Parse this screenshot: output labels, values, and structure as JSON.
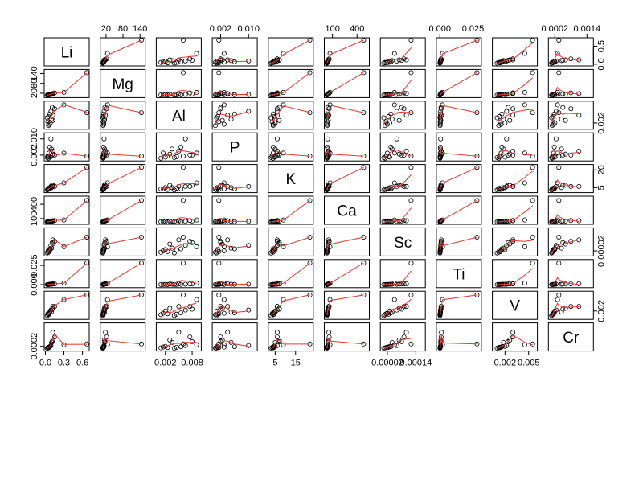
{
  "chart_data": {
    "type": "scatter-matrix",
    "variables": [
      {
        "name": "Li",
        "min": 0.02,
        "max": 0.67,
        "ticks": [
          {
            "v": 0.0,
            "label": "0.0"
          },
          {
            "v": 0.3,
            "label": "0.3"
          },
          {
            "v": 0.6,
            "label": "0.6"
          }
        ],
        "side_ticks": [
          {
            "v": 0.0,
            "label": "0.0"
          },
          {
            "v": 0.5,
            "label": "0.5"
          }
        ]
      },
      {
        "name": "Mg",
        "min": 8,
        "max": 150,
        "ticks": [
          {
            "v": 20,
            "label": "20"
          },
          {
            "v": 80,
            "label": "80"
          },
          {
            "v": 140,
            "label": "140"
          }
        ]
      },
      {
        "name": "Al",
        "min": 0.0005,
        "max": 0.0095,
        "ticks": [
          {
            "v": 0.002,
            "label": "0.002"
          },
          {
            "v": 0.008,
            "label": "0.008"
          }
        ],
        "side_ticks": [
          {
            "v": 0.002,
            "label": "0.002"
          }
        ]
      },
      {
        "name": "P",
        "min": 0.0003,
        "max": 0.0118,
        "ticks": [
          {
            "v": 0.002,
            "label": "0.002"
          },
          {
            "v": 0.01,
            "label": "0.010"
          }
        ]
      },
      {
        "name": "K",
        "min": 2.8,
        "max": 22.5,
        "ticks": [
          {
            "v": 5,
            "label": "5"
          },
          {
            "v": 15,
            "label": "15"
          }
        ],
        "side_ticks": [
          {
            "v": 5,
            "label": "5"
          },
          {
            "v": 20,
            "label": "20"
          }
        ]
      },
      {
        "name": "Ca",
        "min": 30,
        "max": 520,
        "ticks": [
          {
            "v": 100,
            "label": "100"
          },
          {
            "v": 400,
            "label": "400"
          }
        ]
      },
      {
        "name": "Sc",
        "min": 5e-07,
        "max": 0.00017,
        "ticks": [
          {
            "v": 2e-05,
            "label": "0.00002"
          },
          {
            "v": 0.00014,
            "label": "0.00014"
          }
        ],
        "side_ticks": [
          {
            "v": 2e-05,
            "label": "0.00002"
          }
        ]
      },
      {
        "name": "Ti",
        "min": -0.0008,
        "max": 0.0295,
        "ticks": [
          {
            "v": 0.0,
            "label": "0.000"
          },
          {
            "v": 0.025,
            "label": "0.025"
          }
        ]
      },
      {
        "name": "V",
        "min": 0.0007,
        "max": 0.0058,
        "ticks": [
          {
            "v": 0.002,
            "label": "0.002"
          },
          {
            "v": 0.005,
            "label": "0.005"
          }
        ],
        "side_ticks": [
          {
            "v": 0.002,
            "label": "0.002"
          }
        ]
      },
      {
        "name": "Cr",
        "min": 5e-05,
        "max": 0.00155,
        "ticks": [
          {
            "v": 0.0002,
            "label": "0.0002"
          },
          {
            "v": 0.0014,
            "label": "0.0014"
          }
        ],
        "side_ticks": [
          {
            "v": 0.0002,
            "label": "0.0002"
          }
        ]
      }
    ],
    "observations": [
      {
        "Li": 0.67,
        "Mg": 145,
        "Al": 0.006,
        "P": 0.0015,
        "K": 22,
        "Ca": 480,
        "Sc": 0.00012,
        "Ti": 0.028,
        "V": 0.0055,
        "Cr": 0.00035
      },
      {
        "Li": 0.3,
        "Mg": 25,
        "Al": 0.009,
        "P": 0.003,
        "K": 9,
        "Ca": 70,
        "Sc": 5e-05,
        "Ti": 0.002,
        "V": 0.0045,
        "Cr": 0.0003
      },
      {
        "Li": 0.15,
        "Mg": 22,
        "Al": 0.0075,
        "P": 0.002,
        "K": 6,
        "Ca": 60,
        "Sc": 9e-05,
        "Ti": 0.001,
        "V": 0.003,
        "Cr": 0.0008
      },
      {
        "Li": 0.12,
        "Mg": 18,
        "Al": 0.005,
        "P": 0.004,
        "K": 6,
        "Ca": 55,
        "Sc": 0.0001,
        "Ti": 0.0012,
        "V": 0.003,
        "Cr": 0.0011
      },
      {
        "Li": 0.12,
        "Mg": 14,
        "Al": 0.003,
        "P": 0.0025,
        "K": 7,
        "Ca": 50,
        "Sc": 7e-05,
        "Ti": 0.0008,
        "V": 0.0026,
        "Cr": 0.0006
      },
      {
        "Li": 0.1,
        "Mg": 15,
        "Al": 0.0035,
        "P": 0.005,
        "K": 5,
        "Ca": 45,
        "Sc": 4e-05,
        "Ti": 0.0005,
        "V": 0.0018,
        "Cr": 0.00045
      },
      {
        "Li": 0.08,
        "Mg": 12,
        "Al": 0.002,
        "P": 0.001,
        "K": 5,
        "Ca": 40,
        "Sc": 3e-05,
        "Ti": 0.0004,
        "V": 0.002,
        "Cr": 0.0002
      },
      {
        "Li": 0.06,
        "Mg": 12,
        "Al": 0.0015,
        "P": 0.003,
        "K": 4,
        "Ca": 38,
        "Sc": 2e-05,
        "Ti": 0.0003,
        "V": 0.0015,
        "Cr": 0.00015
      },
      {
        "Li": 0.05,
        "Mg": 10,
        "Al": 0.001,
        "P": 0.0005,
        "K": 4,
        "Ca": 35,
        "Sc": 1e-05,
        "Ti": 0.0002,
        "V": 0.0012,
        "Cr": 0.0001
      },
      {
        "Li": 0.04,
        "Mg": 10,
        "Al": 0.0025,
        "P": 0.0015,
        "K": 3.5,
        "Ca": 34,
        "Sc": 1.5e-05,
        "Ti": 0.0002,
        "V": 0.0014,
        "Cr": 0.00012
      },
      {
        "Li": 0.03,
        "Mg": 9,
        "Al": 0.004,
        "P": 0.0008,
        "K": 3,
        "Ca": 32,
        "Sc": 5e-06,
        "Ti": 0.0001,
        "V": 0.001,
        "Cr": 8e-05
      },
      {
        "Li": 0.09,
        "Mg": 13,
        "Al": 0.0065,
        "P": 0.01,
        "K": 6,
        "Ca": 42,
        "Sc": 6e-05,
        "Ti": 0.0006,
        "V": 0.0022,
        "Cr": 0.00025
      },
      {
        "Li": 0.07,
        "Mg": 11,
        "Al": 0.0055,
        "P": 0.006,
        "K": 4,
        "Ca": 36,
        "Sc": 3.5e-05,
        "Ti": 0.0004,
        "V": 0.0016,
        "Cr": 0.00018
      },
      {
        "Li": 0.11,
        "Mg": 16,
        "Al": 0.008,
        "P": 0.002,
        "K": 7,
        "Ca": 48,
        "Sc": 8e-05,
        "Ti": 0.0009,
        "V": 0.0024,
        "Cr": 0.0005
      },
      {
        "Li": 0.05,
        "Mg": 10,
        "Al": 0.0045,
        "P": 0.0012,
        "K": 4.5,
        "Ca": 33,
        "Sc": 2.5e-05,
        "Ti": 0.0003,
        "V": 0.0013,
        "Cr": 0.00014
      }
    ]
  }
}
